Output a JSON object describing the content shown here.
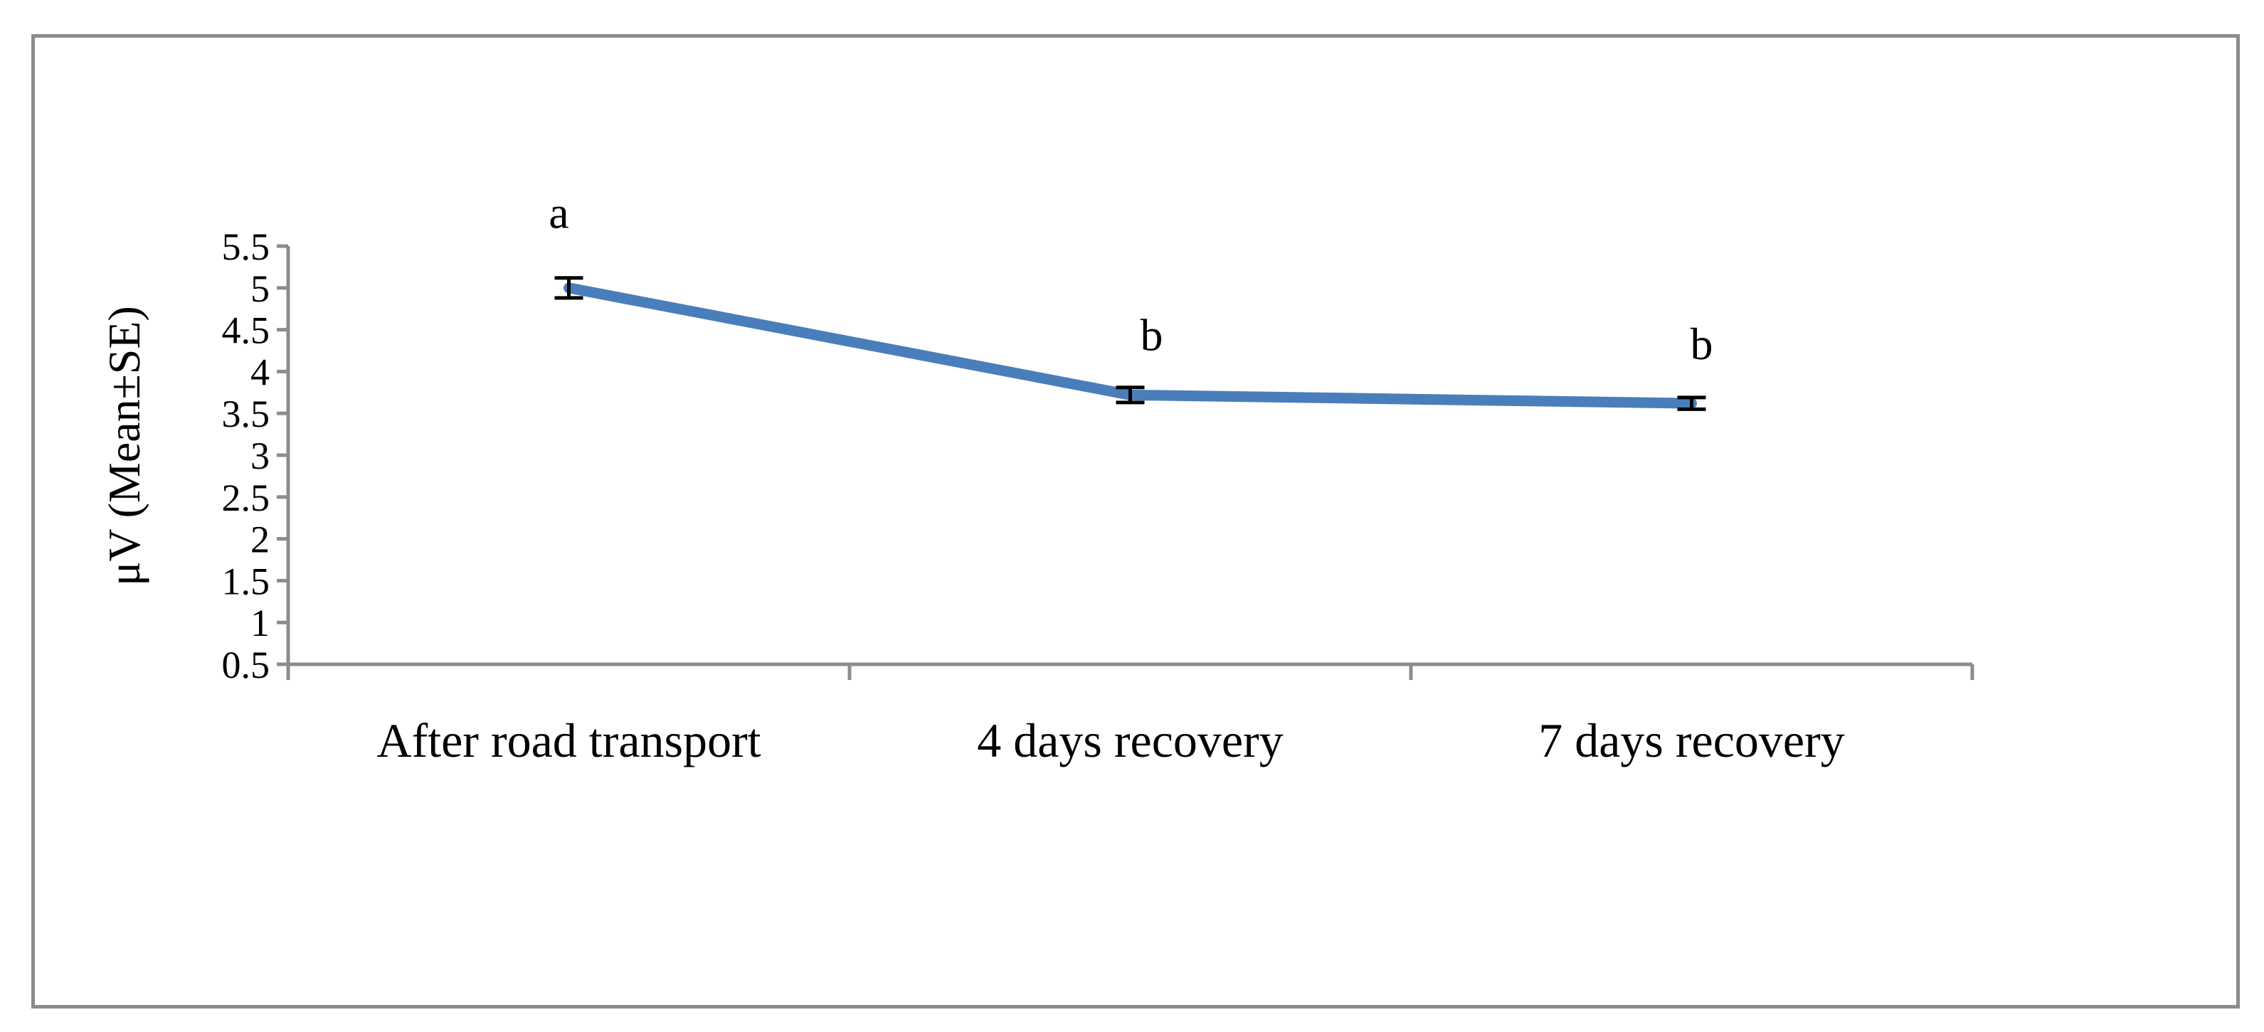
{
  "chart_data": {
    "type": "line",
    "categories": [
      "After road transport",
      "4 days recovery",
      "7 days recovery"
    ],
    "series": [
      {
        "values": [
          5.0,
          3.72,
          3.62
        ],
        "error": [
          0.12,
          0.09,
          0.07
        ],
        "significance": [
          "a",
          "b",
          "b"
        ]
      }
    ],
    "title": "",
    "xlabel": "",
    "ylabel": "μV (Mean±SE)",
    "ylim": [
      0.5,
      5.5
    ],
    "yticks": [
      0.5,
      1,
      1.5,
      2,
      2.5,
      3,
      3.5,
      4,
      4.5,
      5,
      5.5
    ],
    "ytick_labels": [
      "0.5",
      "1",
      "1.5",
      "2",
      "2.5",
      "3",
      "3.5",
      "4",
      "4.5",
      "5",
      "5.5"
    ],
    "grid": false,
    "legend": "none",
    "colors": {
      "line": "#4a7ebb",
      "axis": "#8c8c8c",
      "errorbar": "#000000"
    }
  }
}
